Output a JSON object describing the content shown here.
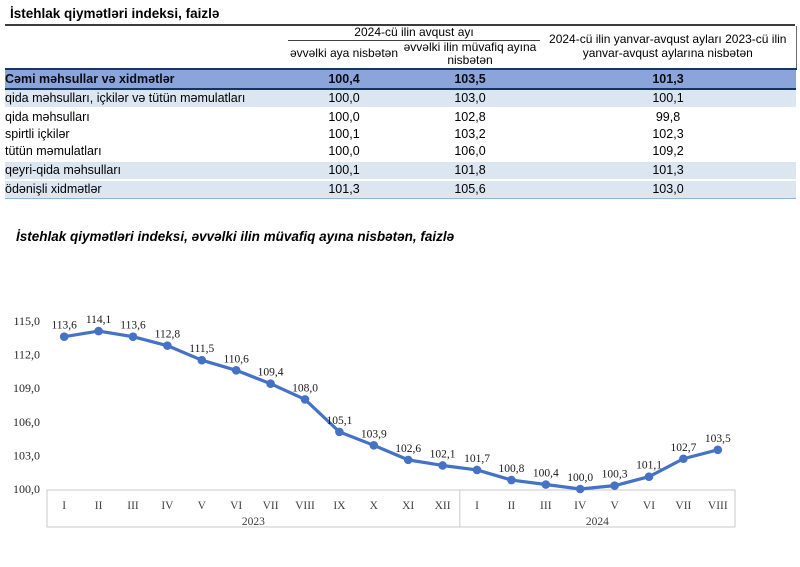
{
  "page": {
    "title": "İstehlak qiymətləri indeksi, faizlə",
    "chart_title": "İstehlak qiymətləri indeksi, əvvəlki ilin müvafiq ayına nisbətən, faizlə"
  },
  "table": {
    "group_header": "2024-cü ilin avqust ayı",
    "sub_header_1": "əvvəlki aya nisbətən",
    "sub_header_2": "əvvəlki ilin müvafiq ayına nisbətən",
    "col4_header": "2024-cü ilin yanvar-avqust ayları 2023-cü ilin yanvar-avqust aylarına nisbətən",
    "rows": [
      {
        "label": "Cəmi məhsullar və xidmətlər",
        "values": [
          "100,4",
          "103,5",
          "101,3"
        ],
        "level": 0,
        "style": "total"
      },
      {
        "label": "qida məhsulları, içkilər və tütün məmulatları",
        "values": [
          "100,0",
          "103,0",
          "100,1"
        ],
        "level": 1,
        "style": "shaded"
      },
      {
        "label": "qida məhsulları",
        "values": [
          "100,0",
          "102,8",
          "99,8"
        ],
        "level": 2,
        "style": "plain"
      },
      {
        "label": "spirtli içkilər",
        "values": [
          "100,1",
          "103,2",
          "102,3"
        ],
        "level": 2,
        "style": "plain"
      },
      {
        "label": "tütün məmulatları",
        "values": [
          "100,0",
          "106,0",
          "109,2"
        ],
        "level": 2,
        "style": "plain"
      },
      {
        "label": "qeyri-qida məhsulları",
        "values": [
          "100,1",
          "101,8",
          "101,3"
        ],
        "level": 1,
        "style": "shaded"
      },
      {
        "label": "ödənişli xidmətlər",
        "values": [
          "101,3",
          "105,6",
          "103,0"
        ],
        "level": 1,
        "style": "shaded"
      }
    ]
  },
  "chart_data": {
    "type": "line",
    "title": "İstehlak qiymətləri indeksi, əvvəlki ilin müvafiq ayına nisbətən, faizlə",
    "x": [
      "I",
      "II",
      "III",
      "IV",
      "V",
      "VI",
      "VII",
      "VIII",
      "IX",
      "X",
      "XI",
      "XII",
      "I",
      "II",
      "III",
      "IV",
      "V",
      "VI",
      "VII",
      "VIII"
    ],
    "year_groups": [
      {
        "label": "2023",
        "count": 12
      },
      {
        "label": "2024",
        "count": 8
      }
    ],
    "values": [
      113.6,
      114.1,
      113.6,
      112.8,
      111.5,
      110.6,
      109.4,
      108.0,
      105.1,
      103.9,
      102.6,
      102.1,
      101.7,
      100.8,
      100.4,
      100.0,
      100.3,
      101.1,
      102.7,
      103.5
    ],
    "point_labels": [
      "113,6",
      "114,1",
      "113,6",
      "112,8",
      "111,5",
      "110,6",
      "109,4",
      "108,0",
      "105,1",
      "103,9",
      "102,6",
      "102,1",
      "101,7",
      "100,8",
      "100,4",
      "100,0",
      "100,3",
      "101,1",
      "102,7",
      "103,5"
    ],
    "ylim": [
      100,
      115
    ],
    "ytick_step": 3,
    "ytick_labels": [
      "100,0",
      "103,0",
      "106,0",
      "109,0",
      "112,0",
      "115,0"
    ],
    "grid": false,
    "legend": null,
    "line_color": "#4472C4",
    "axis_box_color": "#C9C9C9"
  }
}
